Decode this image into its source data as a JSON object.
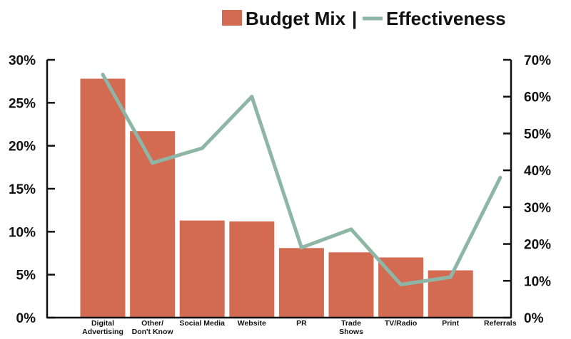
{
  "chart_data": {
    "type": "bar",
    "categories": [
      "Digital Advertising",
      "Other/ Don't Know",
      "Social Media",
      "Website",
      "PR",
      "Trade Shows",
      "TV/Radio",
      "Print",
      "Referrals"
    ],
    "category_lines": [
      [
        "Digital",
        "Advertising"
      ],
      [
        "Other/",
        "Don't Know"
      ],
      [
        "Social Media"
      ],
      [
        "Website"
      ],
      [
        "PR"
      ],
      [
        "Trade",
        "Shows"
      ],
      [
        "TV/Radio"
      ],
      [
        "Print"
      ],
      [
        "Referrals"
      ]
    ],
    "series": [
      {
        "name": "Budget Mix",
        "type": "bar",
        "axis": "left",
        "values": [
          27.8,
          21.7,
          11.3,
          11.2,
          8.1,
          7.6,
          7.0,
          5.5,
          null
        ]
      },
      {
        "name": "Effectiveness",
        "type": "line",
        "axis": "right",
        "values": [
          66,
          42,
          46,
          60,
          19,
          24,
          9,
          11,
          38
        ]
      }
    ],
    "y_left": {
      "ylim": [
        0,
        30
      ],
      "ticks": [
        "0%",
        "5%",
        "10%",
        "15%",
        "20%",
        "25%",
        "30%"
      ]
    },
    "y_right": {
      "ylim": [
        0,
        70
      ],
      "ticks": [
        "0%",
        "10%",
        "20%",
        "30%",
        "40%",
        "50%",
        "60%",
        "70%"
      ]
    },
    "legend": {
      "position": "top-right",
      "separator": "|"
    },
    "colors": {
      "bar": "#D26B52",
      "line": "#8DB6A6",
      "axis": "#111111"
    },
    "grid": false
  }
}
